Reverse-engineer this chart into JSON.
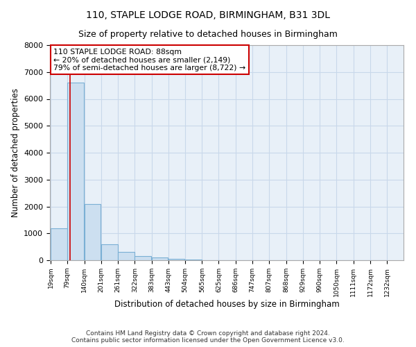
{
  "title1": "110, STAPLE LODGE ROAD, BIRMINGHAM, B31 3DL",
  "title2": "Size of property relative to detached houses in Birmingham",
  "xlabel": "Distribution of detached houses by size in Birmingham",
  "ylabel": "Number of detached properties",
  "bins": [
    19,
    79,
    140,
    201,
    261,
    322,
    383,
    443,
    504,
    565,
    625,
    686,
    747,
    807,
    868,
    929,
    990,
    1050,
    1111,
    1172,
    1232
  ],
  "counts": [
    1200,
    6600,
    2100,
    600,
    300,
    150,
    100,
    60,
    20,
    5,
    0,
    0,
    5,
    0,
    0,
    0,
    0,
    0,
    0,
    0
  ],
  "bar_color": "#ccdff0",
  "bar_edge_color": "#7aafd4",
  "property_line_x": 88,
  "annotation_line1": "110 STAPLE LODGE ROAD: 88sqm",
  "annotation_line2": "← 20% of detached houses are smaller (2,149)",
  "annotation_line3": "79% of semi-detached houses are larger (8,722) →",
  "annotation_box_edge": "#cc0000",
  "footer1": "Contains HM Land Registry data © Crown copyright and database right 2024.",
  "footer2": "Contains public sector information licensed under the Open Government Licence v3.0.",
  "ylim": [
    0,
    8000
  ],
  "yticks": [
    0,
    1000,
    2000,
    3000,
    4000,
    5000,
    6000,
    7000,
    8000
  ],
  "grid_color": "#c8d8ea",
  "bg_color": "#e8f0f8"
}
